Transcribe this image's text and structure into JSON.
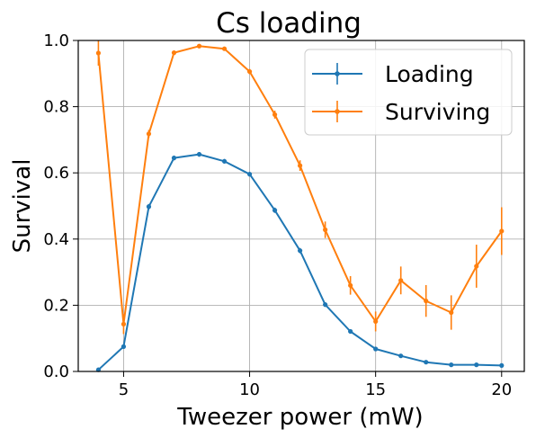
{
  "chart_data": {
    "type": "line",
    "title": "Cs loading",
    "xlabel": "Tweezer power (mW)",
    "ylabel": "Survival",
    "xlim": [
      3.2,
      20.9
    ],
    "ylim": [
      0.0,
      1.0
    ],
    "xticks": [
      5,
      10,
      15,
      20
    ],
    "yticks": [
      0.0,
      0.2,
      0.4,
      0.6,
      0.8,
      1.0
    ],
    "xtick_labels": [
      "5",
      "10",
      "15",
      "20"
    ],
    "ytick_labels": [
      "0.0",
      "0.2",
      "0.4",
      "0.6",
      "0.8",
      "1.0"
    ],
    "grid": true,
    "legend_position": "top-right",
    "x": [
      4,
      5,
      6,
      7,
      8,
      9,
      10,
      11,
      12,
      13,
      14,
      15,
      16,
      17,
      18,
      19,
      20
    ],
    "series": [
      {
        "name": "Loading",
        "color": "#1f77b4",
        "values": [
          0.005,
          0.075,
          0.498,
          0.645,
          0.656,
          0.635,
          0.596,
          0.487,
          0.365,
          0.202,
          0.121,
          0.068,
          0.047,
          0.028,
          0.02,
          0.02,
          0.018
        ],
        "errors": [
          0.003,
          0.006,
          0.008,
          0.007,
          0.007,
          0.007,
          0.007,
          0.008,
          0.008,
          0.007,
          0.006,
          0.005,
          0.004,
          0.003,
          0.003,
          0.003,
          0.003
        ]
      },
      {
        "name": "Surviving",
        "color": "#ff7f0e",
        "values": [
          0.962,
          0.143,
          0.718,
          0.963,
          0.983,
          0.975,
          0.906,
          0.776,
          0.622,
          0.428,
          0.26,
          0.151,
          0.275,
          0.213,
          0.178,
          0.318,
          0.424
        ],
        "errors": [
          0.038,
          0.03,
          0.012,
          0.006,
          0.004,
          0.005,
          0.008,
          0.012,
          0.016,
          0.025,
          0.028,
          0.03,
          0.042,
          0.048,
          0.052,
          0.065,
          0.072
        ]
      }
    ]
  }
}
